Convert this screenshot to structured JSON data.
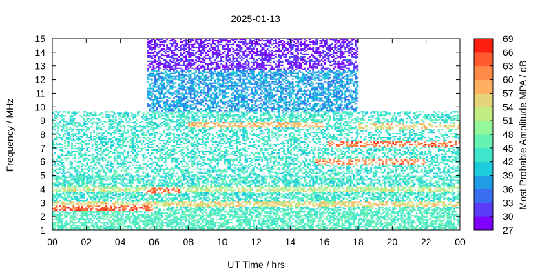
{
  "chart_data": {
    "type": "heatmap",
    "title": "2025-01-13",
    "xlabel": "UT Time / hrs",
    "ylabel": "Frequency / MHz",
    "x_ticks": [
      "00",
      "02",
      "04",
      "06",
      "08",
      "10",
      "12",
      "14",
      "16",
      "18",
      "20",
      "22",
      "00"
    ],
    "xlim": [
      0,
      24
    ],
    "y_ticks": [
      "1",
      "2",
      "3",
      "4",
      "5",
      "6",
      "7",
      "8",
      "9",
      "10",
      "11",
      "12",
      "13",
      "14",
      "15"
    ],
    "ylim": [
      1,
      15
    ],
    "colorbar": {
      "label": "Most Probable Amplitude MPA / dB",
      "ticks": [
        "69",
        "66",
        "63",
        "60",
        "57",
        "54",
        "51",
        "48",
        "45",
        "42",
        "39",
        "36",
        "33",
        "30",
        "27"
      ],
      "range": [
        27,
        69
      ],
      "colors": [
        "#8000ff",
        "#5c3cf8",
        "#3a6ef0",
        "#1f9ce4",
        "#1ccbdc",
        "#3fe6cc",
        "#66f2b0",
        "#94f79a",
        "#c4ec84",
        "#e6d47a",
        "#ffb060",
        "#ff8a48",
        "#ff5a30",
        "#ff1e10"
      ]
    },
    "coverage": [
      {
        "x_range": [
          0,
          5.6
        ],
        "y_range": [
          1,
          9.7
        ]
      },
      {
        "x_range": [
          5.6,
          18
        ],
        "y_range": [
          1,
          15
        ]
      },
      {
        "x_range": [
          18,
          24
        ],
        "y_range": [
          1,
          9.7
        ]
      }
    ],
    "bands": [
      {
        "x_range": [
          0,
          6
        ],
        "freq": 2.6,
        "value": 64
      },
      {
        "x_range": [
          5.5,
          7.5
        ],
        "freq": 3.9,
        "value": 63
      },
      {
        "x_range": [
          0,
          24
        ],
        "freq": 2.9,
        "value": 55
      },
      {
        "x_range": [
          0,
          24
        ],
        "freq": 4.0,
        "value": 52
      },
      {
        "x_range": [
          16.2,
          24
        ],
        "freq": 7.3,
        "value": 63
      },
      {
        "x_range": [
          15.5,
          22
        ],
        "freq": 6.0,
        "value": 61
      },
      {
        "x_range": [
          8,
          16
        ],
        "freq": 8.7,
        "value": 58
      },
      {
        "x_range": [
          18,
          24
        ],
        "freq": 8.6,
        "value": 56
      },
      {
        "x_range": [
          5.5,
          18
        ],
        "freq": 13.5,
        "value": 30
      },
      {
        "x_range": [
          5.5,
          18
        ],
        "freq": 14.5,
        "value": 28
      }
    ]
  }
}
